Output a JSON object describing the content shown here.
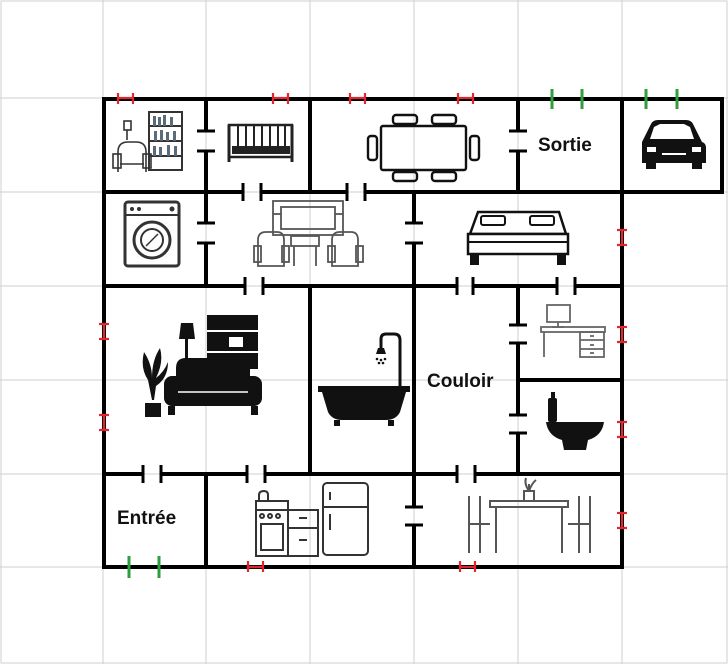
{
  "floorplan": {
    "labels": {
      "sortie": "Sortie",
      "couloir": "Couloir",
      "entree": "Entrée"
    },
    "colors": {
      "wall": "#000000",
      "grid": "#cfcfcf",
      "exit_door": "#2e9e3f",
      "window": "#e3262d",
      "background": "#ffffff"
    },
    "rooms": [
      {
        "id": "salon-lecture",
        "icons": [
          "armchair-icon",
          "lamp-icon",
          "bookshelf-icon"
        ]
      },
      {
        "id": "chambre-bebe",
        "icons": [
          "crib-icon"
        ]
      },
      {
        "id": "salle-reunion",
        "icons": [
          "meeting-table-icon"
        ]
      },
      {
        "id": "sortie",
        "icons": []
      },
      {
        "id": "garage",
        "icons": [
          "car-icon"
        ]
      },
      {
        "id": "buanderie",
        "icons": [
          "washing-machine-icon"
        ]
      },
      {
        "id": "salle-tv",
        "icons": [
          "tv-unit-icon",
          "armchair-icon"
        ]
      },
      {
        "id": "chambre",
        "icons": [
          "bed-icon"
        ]
      },
      {
        "id": "salon",
        "icons": [
          "plant-icon",
          "lamp-icon",
          "cabinet-icon",
          "sofa-icon"
        ]
      },
      {
        "id": "salle-de-bain",
        "icons": [
          "bathtub-icon",
          "shower-icon"
        ]
      },
      {
        "id": "couloir",
        "icons": []
      },
      {
        "id": "bureau",
        "icons": [
          "desk-icon"
        ]
      },
      {
        "id": "toilettes",
        "icons": [
          "toilet-icon"
        ]
      },
      {
        "id": "entree",
        "icons": []
      },
      {
        "id": "cuisine",
        "icons": [
          "stove-icon",
          "fridge-icon"
        ]
      },
      {
        "id": "salle-a-manger",
        "icons": [
          "dining-table-icon"
        ]
      }
    ]
  }
}
